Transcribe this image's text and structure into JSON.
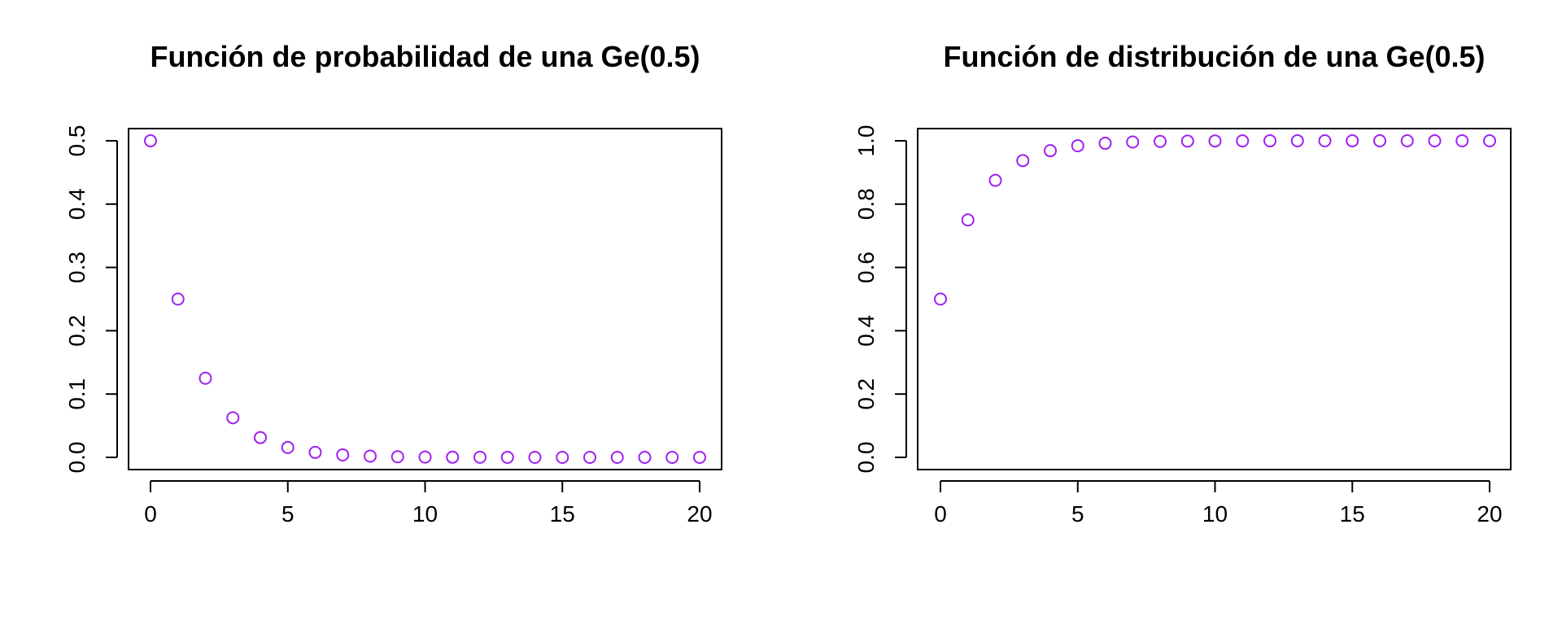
{
  "chart_data": [
    {
      "type": "scatter",
      "title": "Función de probabilidad de una Ge(0.5)",
      "xlabel": "",
      "ylabel": "",
      "xlim": [
        0,
        20
      ],
      "ylim": [
        0,
        0.5
      ],
      "x_ticks": [
        0,
        5,
        10,
        15,
        20
      ],
      "y_ticks": [
        0.0,
        0.1,
        0.2,
        0.3,
        0.4,
        0.5
      ],
      "x_tick_labels": [
        "0",
        "5",
        "10",
        "15",
        "20"
      ],
      "y_tick_labels": [
        "0.0",
        "0.1",
        "0.2",
        "0.3",
        "0.4",
        "0.5"
      ],
      "marker": "open-circle",
      "color": "#a020f0",
      "grid": false,
      "legend": false,
      "x": [
        0,
        1,
        2,
        3,
        4,
        5,
        6,
        7,
        8,
        9,
        10,
        11,
        12,
        13,
        14,
        15,
        16,
        17,
        18,
        19,
        20
      ],
      "y": [
        0.5,
        0.25,
        0.125,
        0.0625,
        0.03125,
        0.015625,
        0.0078125,
        0.00390625,
        0.001953125,
        0.0009765625,
        0.00048828125,
        0.000244140625,
        0.0001220703125,
        6.103515625e-05,
        3.0517578125e-05,
        1.52587890625e-05,
        7.62939453125e-06,
        3.814697265625e-06,
        1.9073486328125e-06,
        9.5367431640625e-07,
        4.76837158203125e-07
      ]
    },
    {
      "type": "scatter",
      "title": "Función de distribución de una Ge(0.5)",
      "xlabel": "",
      "ylabel": "",
      "xlim": [
        0,
        20
      ],
      "ylim": [
        0,
        1
      ],
      "x_ticks": [
        0,
        5,
        10,
        15,
        20
      ],
      "y_ticks": [
        0.0,
        0.2,
        0.4,
        0.6,
        0.8,
        1.0
      ],
      "x_tick_labels": [
        "0",
        "5",
        "10",
        "15",
        "20"
      ],
      "y_tick_labels": [
        "0.0",
        "0.2",
        "0.4",
        "0.6",
        "0.8",
        "1.0"
      ],
      "marker": "open-circle",
      "color": "#a020f0",
      "grid": false,
      "legend": false,
      "x": [
        0,
        1,
        2,
        3,
        4,
        5,
        6,
        7,
        8,
        9,
        10,
        11,
        12,
        13,
        14,
        15,
        16,
        17,
        18,
        19,
        20
      ],
      "y": [
        0.5,
        0.75,
        0.875,
        0.9375,
        0.96875,
        0.984375,
        0.9921875,
        0.99609375,
        0.998046875,
        0.9990234375,
        0.99951171875,
        0.999755859375,
        0.9998779296875,
        0.99993896484375,
        0.999969482421875,
        0.9999847412109375,
        0.9999923706054688,
        0.9999961853027344,
        0.9999980926513672,
        0.9999990463256836,
        0.9999995231628418
      ]
    }
  ]
}
